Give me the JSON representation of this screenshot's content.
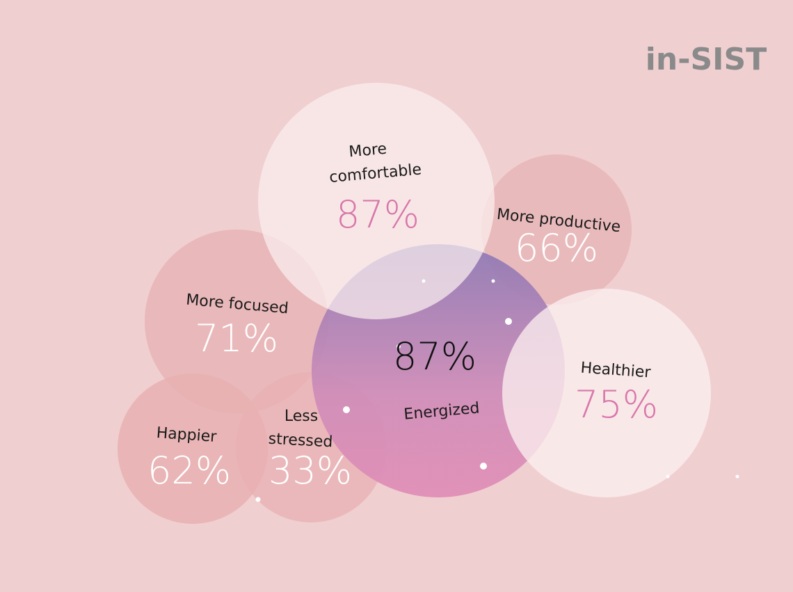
{
  "logo": "in-SIST",
  "bubbles": [
    {
      "label": [
        "More",
        "comfortable"
      ],
      "value": "87%"
    },
    {
      "label": [
        "More productive"
      ],
      "value": "66%"
    },
    {
      "label": [
        "More focused"
      ],
      "value": "71%"
    },
    {
      "label": [
        "Energized"
      ],
      "value": "87%"
    },
    {
      "label": [
        "Healthier"
      ],
      "value": "75%"
    },
    {
      "label": [
        "Happier"
      ],
      "value": "62%"
    },
    {
      "label": [
        "Less",
        "stressed"
      ],
      "value": "33%"
    }
  ]
}
